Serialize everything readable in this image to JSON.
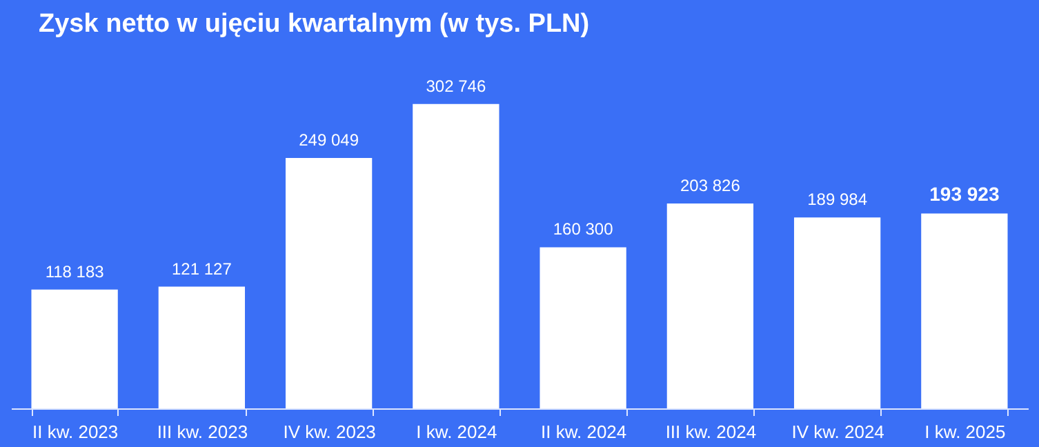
{
  "chart_data": {
    "type": "bar",
    "title": "Zysk netto w ujęciu kwartalnym (w tys. PLN)",
    "categories": [
      "II kw. 2023",
      "III kw. 2023",
      "IV kw. 2023",
      "I kw. 2024",
      "II kw. 2024",
      "III kw. 2024",
      "IV kw. 2024",
      "I kw. 2025"
    ],
    "values": [
      118183,
      121127,
      249049,
      302746,
      160300,
      203826,
      189984,
      193923
    ],
    "value_labels": [
      "118 183",
      "121 127",
      "249 049",
      "302 746",
      "160 300",
      "203 826",
      "189 984",
      "193 923"
    ],
    "color": "#ffffff",
    "tick_labels": "x",
    "grid": false
  }
}
